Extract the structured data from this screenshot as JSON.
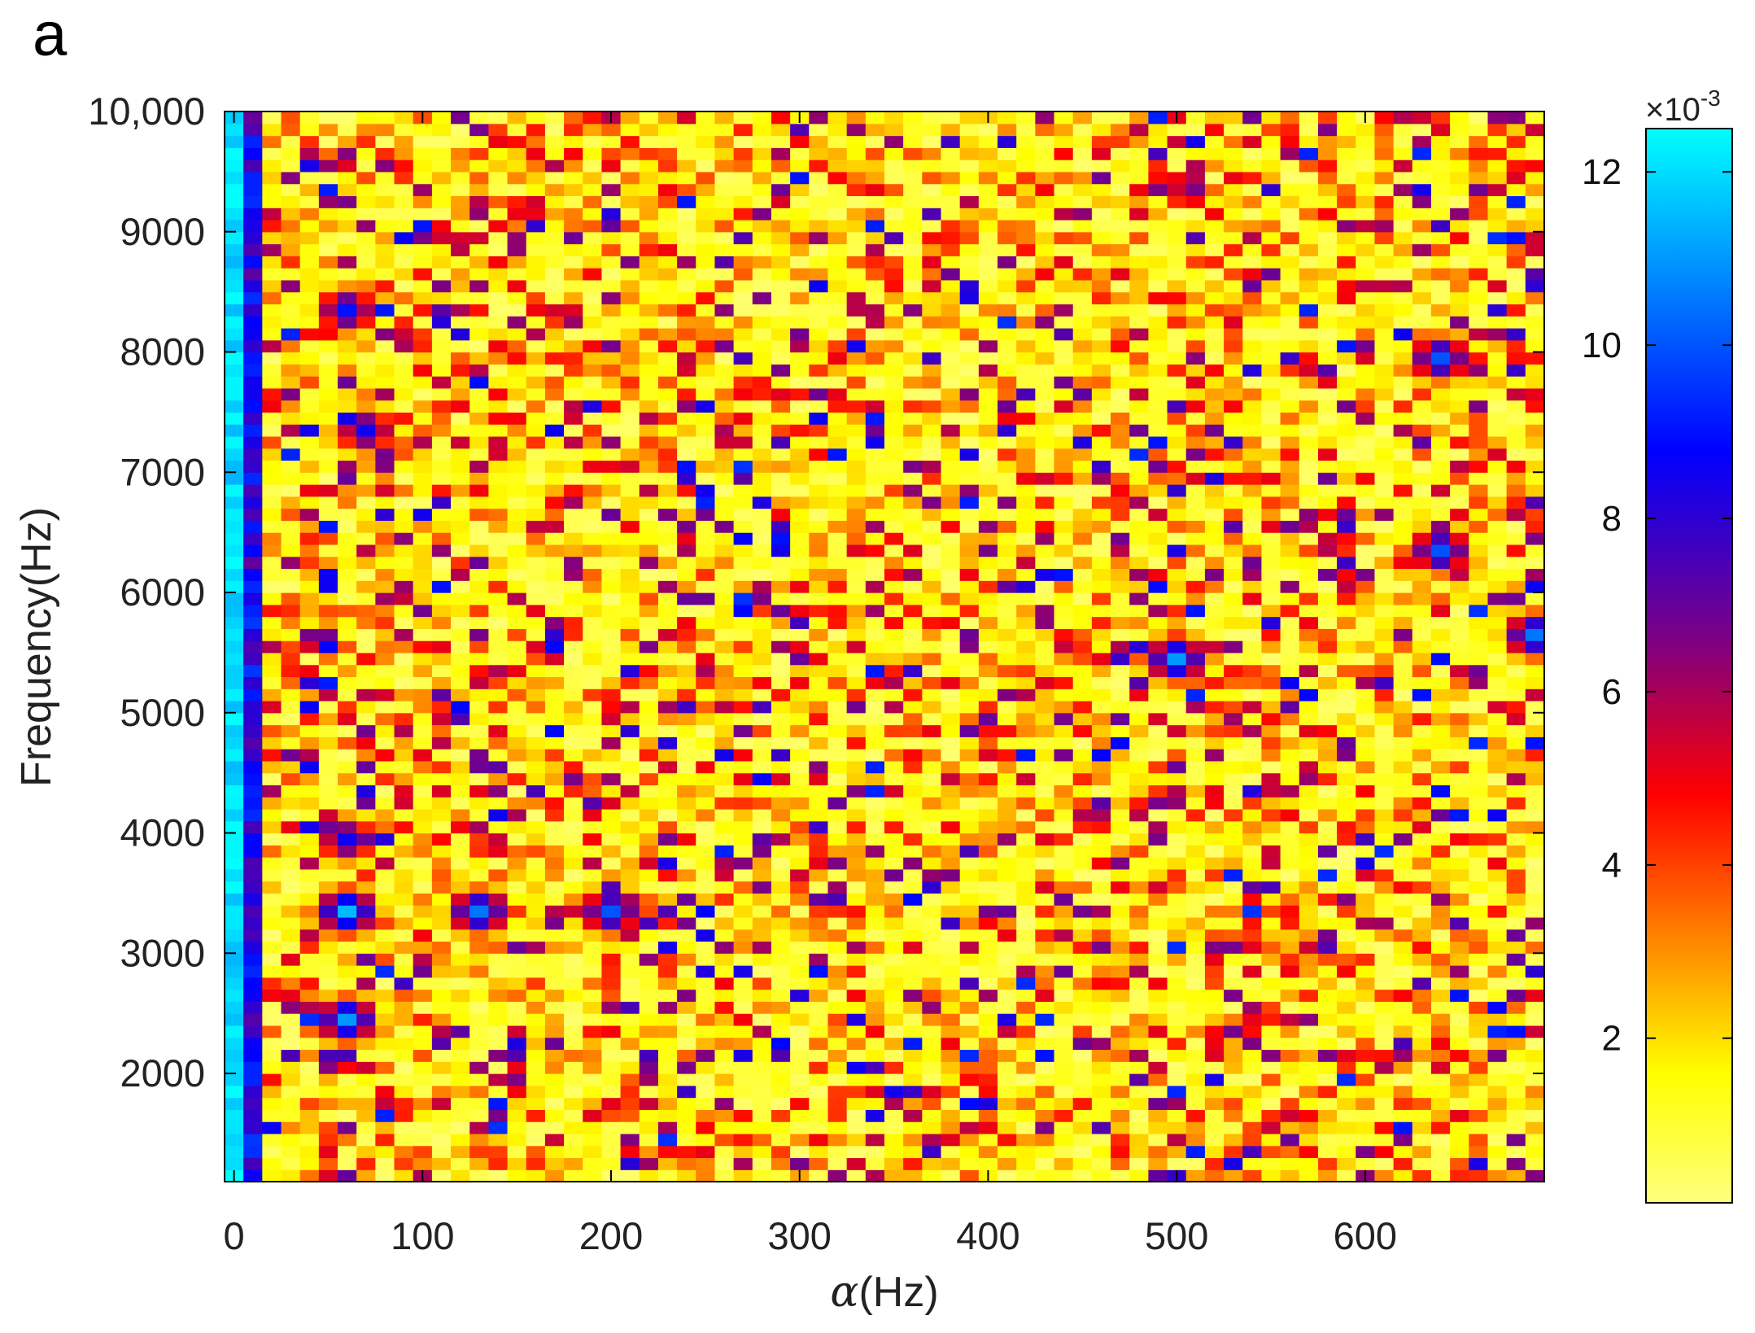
{
  "panel_label": "a",
  "chart_data": {
    "type": "heatmap",
    "xlabel_symbol": "α",
    "xlabel_unit": "(Hz)",
    "ylabel": "Frequency(Hz)",
    "xlim": [
      -5,
      695
    ],
    "ylim": [
      1100,
      10000
    ],
    "x_ticks": [
      0,
      100,
      200,
      300,
      400,
      500,
      600
    ],
    "x_tick_labels": [
      "0",
      "100",
      "200",
      "300",
      "400",
      "500",
      "600"
    ],
    "y_ticks": [
      2000,
      3000,
      4000,
      5000,
      6000,
      7000,
      8000,
      9000,
      10000
    ],
    "y_tick_labels": [
      "2000",
      "3000",
      "4000",
      "5000",
      "6000",
      "7000",
      "8000",
      "9000",
      "10,000"
    ],
    "alpha_step_hz": 10,
    "freq_step_hz": 100,
    "colormap": [
      "#ffff80",
      "#ffff00",
      "#ff8000",
      "#ff0000",
      "#800080",
      "#0000ff",
      "#00ffff"
    ],
    "colorbar": {
      "range": [
        0.0001,
        0.0125
      ],
      "ticks": [
        2,
        4,
        6,
        8,
        10,
        12
      ],
      "tick_labels": [
        "2",
        "4",
        "6",
        "8",
        "10",
        "12"
      ],
      "multiplier_prefix": "×10",
      "multiplier_exponent": "-3"
    },
    "hotspots": [
      {
        "alpha": 0,
        "freq": 5500,
        "value": 12.0,
        "note": "α=0 column, high throughout"
      },
      {
        "alpha": 60,
        "freq": 3300,
        "value": 11.5
      },
      {
        "alpha": 60,
        "freq": 2400,
        "value": 11.0
      },
      {
        "alpha": 130,
        "freq": 3300,
        "value": 10.5
      },
      {
        "alpha": 70,
        "freq": 7300,
        "value": 8.5
      },
      {
        "alpha": 60,
        "freq": 8300,
        "value": 9.0
      },
      {
        "alpha": 60,
        "freq": 3900,
        "value": 8.5
      },
      {
        "alpha": 200,
        "freq": 3300,
        "value": 10.0
      },
      {
        "alpha": 640,
        "freq": 7900,
        "value": 10.0
      },
      {
        "alpha": 640,
        "freq": 6300,
        "value": 10.0
      },
      {
        "alpha": 500,
        "freq": 5400,
        "value": 11.0
      },
      {
        "alpha": 690,
        "freq": 5600,
        "value": 10.5
      }
    ]
  }
}
